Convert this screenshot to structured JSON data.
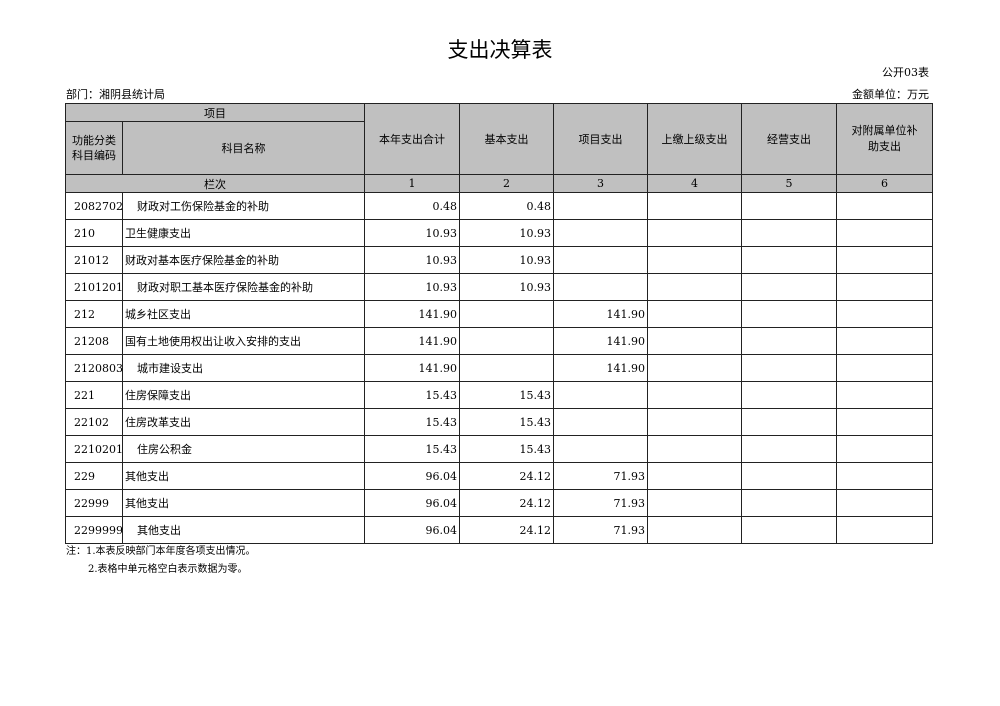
{
  "title": "支出决算表",
  "form_no": "公开03表",
  "department": "部门：湘阴县统计局",
  "unit": "金额单位：万元",
  "header": {
    "project": "项目",
    "code": "功能分类\n科目编码",
    "name": "科目名称",
    "c1": "本年支出合计",
    "c2": "基本支出",
    "c3": "项目支出",
    "c4": "上缴上级支出",
    "c5": "经营支出",
    "c6": "对附属单位补\n助支出",
    "row_index": "栏次",
    "n1": "1",
    "n2": "2",
    "n3": "3",
    "n4": "4",
    "n5": "5",
    "n6": "6"
  },
  "rows": [
    {
      "code": "2082702",
      "name": "财政对工伤保险基金的补助",
      "indent": true,
      "v": [
        "0.48",
        "0.48",
        "",
        "",
        "",
        ""
      ]
    },
    {
      "code": "210",
      "name": "卫生健康支出",
      "indent": false,
      "v": [
        "10.93",
        "10.93",
        "",
        "",
        "",
        ""
      ]
    },
    {
      "code": "21012",
      "name": "财政对基本医疗保险基金的补助",
      "indent": false,
      "v": [
        "10.93",
        "10.93",
        "",
        "",
        "",
        ""
      ]
    },
    {
      "code": "2101201",
      "name": "财政对职工基本医疗保险基金的补助",
      "indent": true,
      "v": [
        "10.93",
        "10.93",
        "",
        "",
        "",
        ""
      ]
    },
    {
      "code": "212",
      "name": "城乡社区支出",
      "indent": false,
      "v": [
        "141.90",
        "",
        "141.90",
        "",
        "",
        ""
      ]
    },
    {
      "code": "21208",
      "name": "国有土地使用权出让收入安排的支出",
      "indent": false,
      "v": [
        "141.90",
        "",
        "141.90",
        "",
        "",
        ""
      ]
    },
    {
      "code": "2120803",
      "name": "城市建设支出",
      "indent": true,
      "v": [
        "141.90",
        "",
        "141.90",
        "",
        "",
        ""
      ]
    },
    {
      "code": "221",
      "name": "住房保障支出",
      "indent": false,
      "v": [
        "15.43",
        "15.43",
        "",
        "",
        "",
        ""
      ]
    },
    {
      "code": "22102",
      "name": "住房改革支出",
      "indent": false,
      "v": [
        "15.43",
        "15.43",
        "",
        "",
        "",
        ""
      ]
    },
    {
      "code": "2210201",
      "name": "住房公积金",
      "indent": true,
      "v": [
        "15.43",
        "15.43",
        "",
        "",
        "",
        ""
      ]
    },
    {
      "code": "229",
      "name": "其他支出",
      "indent": false,
      "v": [
        "96.04",
        "24.12",
        "71.93",
        "",
        "",
        ""
      ]
    },
    {
      "code": "22999",
      "name": "其他支出",
      "indent": false,
      "v": [
        "96.04",
        "24.12",
        "71.93",
        "",
        "",
        ""
      ]
    },
    {
      "code": "2299999",
      "name": "其他支出",
      "indent": true,
      "v": [
        "96.04",
        "24.12",
        "71.93",
        "",
        "",
        ""
      ]
    }
  ],
  "notes": [
    "注：1.本表反映部门本年度各项支出情况。",
    "2.表格中单元格空白表示数据为零。"
  ]
}
